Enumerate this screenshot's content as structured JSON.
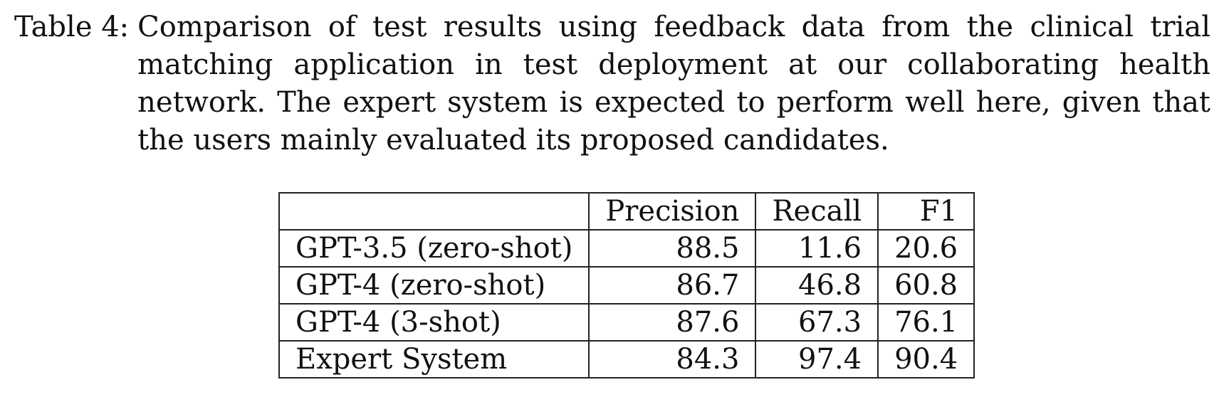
{
  "caption": {
    "label": "Table 4:",
    "text": "Comparison of test results using feedback data from the clinical trial matching application in test deployment at our collaborating health network. The expert system is expected to perform well here, given that the users mainly evaluated its proposed candidates."
  },
  "table": {
    "headers": [
      "",
      "Precision",
      "Recall",
      "F1"
    ],
    "rows": [
      {
        "model": "GPT-3.5 (zero-shot)",
        "precision": "88.5",
        "recall": "11.6",
        "f1": "20.6"
      },
      {
        "model": "GPT-4 (zero-shot)",
        "precision": "86.7",
        "recall": "46.8",
        "f1": "60.8"
      },
      {
        "model": "GPT-4 (3-shot)",
        "precision": "87.6",
        "recall": "67.3",
        "f1": "76.1"
      },
      {
        "model": "Expert System",
        "precision": "84.3",
        "recall": "97.4",
        "f1": "90.4"
      }
    ]
  }
}
